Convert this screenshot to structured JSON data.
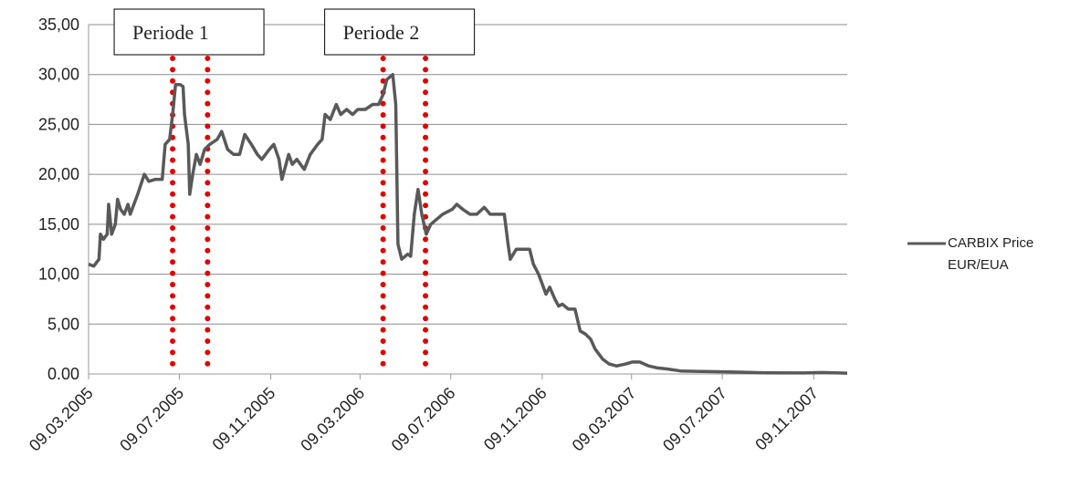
{
  "chart_data": {
    "type": "line",
    "series": [
      {
        "name": "CARBIX Price EUR/EUA",
        "color": "#595959",
        "x": [
          "09.03.2005",
          "16.03.2005",
          "23.03.2005",
          "25.03.2005",
          "29.03.2005",
          "03.04.2005",
          "05.04.2005",
          "09.04.2005",
          "14.04.2005",
          "17.04.2005",
          "21.04.2005",
          "26.04.2005",
          "01.05.2005",
          "04.05.2005",
          "09.05.2005",
          "14.05.2005",
          "23.05.2005",
          "29.05.2005",
          "07.06.2005",
          "16.06.2005",
          "20.06.2005",
          "26.06.2005",
          "30.06.2005",
          "04.07.2005",
          "10.07.2005",
          "14.07.2005",
          "16.07.2005",
          "21.07.2005",
          "23.07.2005",
          "27.07.2005",
          "01.08.2005",
          "06.08.2005",
          "12.08.2005",
          "19.08.2005",
          "29.08.2005",
          "04.09.2005",
          "12.09.2005",
          "20.09.2005",
          "28.09.2005",
          "05.10.2005",
          "14.10.2005",
          "22.10.2005",
          "28.10.2005",
          "07.11.2005",
          "13.11.2005",
          "20.11.2005",
          "24.11.2005",
          "03.12.2005",
          "08.12.2005",
          "14.12.2005",
          "24.12.2005",
          "01.01.2006",
          "11.01.2006",
          "17.01.2006",
          "21.01.2006",
          "28.01.2006",
          "05.02.2006",
          "11.02.2006",
          "19.02.2006",
          "27.02.2006",
          "06.03.2006",
          "16.03.2006",
          "26.03.2006",
          "03.04.2006",
          "09.04.2006",
          "14.04.2006",
          "22.04.2006",
          "26.04.2006",
          "29.04.2006",
          "04.05.2006",
          "12.05.2006",
          "16.05.2006",
          "21.05.2006",
          "26.05.2006",
          "31.05.2006",
          "06.06.2006",
          "12.06.2006",
          "20.06.2006",
          "28.06.2006",
          "11.07.2006",
          "17.07.2006",
          "25.07.2006",
          "04.08.2006",
          "13.08.2006",
          "23.08.2006",
          "31.08.2006",
          "10.09.2006",
          "19.09.2006",
          "24.09.2006",
          "27.09.2006",
          "05.10.2006",
          "13.10.2006",
          "23.10.2006",
          "28.10.2006",
          "04.11.2006",
          "09.11.2006",
          "14.11.2006",
          "19.11.2006",
          "26.11.2006",
          "01.12.2006",
          "06.12.2006",
          "14.12.2006",
          "23.12.2006",
          "30.12.2006",
          "06.01.2007",
          "13.01.2007",
          "19.01.2007",
          "29.01.2007",
          "07.02.2007",
          "17.02.2007",
          "01.03.2007",
          "10.03.2007",
          "20.03.2007",
          "01.04.2007",
          "13.04.2007",
          "26.04.2007",
          "14.05.2007",
          "13.06.2007",
          "20.07.2007",
          "07.09.2007",
          "26.10.2007",
          "20.11.2007",
          "24.12.2007"
        ],
        "values": [
          11,
          10.8,
          11.5,
          14,
          13.5,
          14,
          17,
          14,
          15,
          17.5,
          16.5,
          16,
          17,
          16,
          17,
          18,
          20,
          19.3,
          19.5,
          19.5,
          23,
          23.5,
          26,
          29,
          29,
          28.8,
          26,
          23,
          18,
          20,
          22,
          21,
          22.5,
          23,
          23.5,
          24.3,
          22.5,
          22,
          22,
          24,
          23,
          22,
          21.5,
          22.5,
          23,
          21.5,
          19.5,
          22,
          21,
          21.5,
          20.5,
          22,
          23,
          23.5,
          26,
          25.5,
          27,
          26,
          26.5,
          26,
          26.5,
          26.5,
          27,
          27,
          28,
          29.5,
          30,
          27,
          13,
          11.5,
          12,
          11.8,
          16,
          18.5,
          16,
          14,
          15,
          15.5,
          16,
          16.5,
          17,
          16.5,
          16,
          16,
          16.7,
          16,
          16,
          16,
          13,
          11.5,
          12.5,
          12.5,
          12.5,
          11,
          10,
          9,
          8,
          8.7,
          7.5,
          6.8,
          7,
          6.5,
          6.5,
          4.3,
          4,
          3.5,
          2.5,
          1.5,
          1,
          0.8,
          1,
          1.2,
          1.2,
          0.8,
          0.6,
          0.5,
          0.3,
          0.25,
          0.2,
          0.12,
          0.1,
          0.15,
          0.08
        ]
      }
    ],
    "xlim": [
      "09.03.2005",
      "24.12.2007"
    ],
    "xticks": [
      "09.03.2005",
      "09.07.2005",
      "09.11.2005",
      "09.03.2006",
      "09.07.2006",
      "09.11.2006",
      "09.03.2007",
      "09.07.2007",
      "09.11.2007"
    ],
    "ylim": [
      0,
      35
    ],
    "yticks": [
      {
        "value": 0,
        "label": "0.00"
      },
      {
        "value": 5,
        "label": "5,00"
      },
      {
        "value": 10,
        "label": "10,00"
      },
      {
        "value": 15,
        "label": "15,00"
      },
      {
        "value": 20,
        "label": "20,00"
      },
      {
        "value": 25,
        "label": "25,00"
      },
      {
        "value": 30,
        "label": "30,00"
      },
      {
        "value": 35,
        "label": "35,00"
      }
    ],
    "grid": true,
    "annotations": [
      {
        "label": "Periode 1",
        "start": "30.06.2005",
        "end": "16.08.2005",
        "color": "#e00000"
      },
      {
        "label": "Periode 2",
        "start": "09.04.2006",
        "end": "05.06.2006",
        "color": "#e00000"
      }
    ]
  }
}
